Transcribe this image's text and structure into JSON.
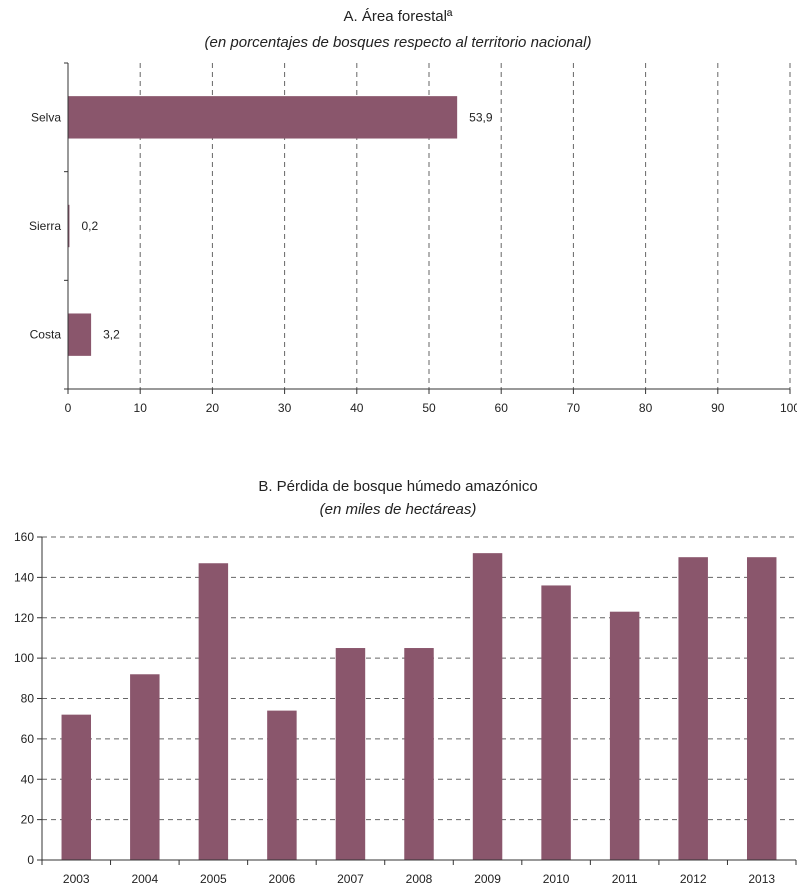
{
  "chart_data": [
    {
      "type": "bar",
      "orientation": "horizontal",
      "title": "A. Área forestalª",
      "subtitle": "(en porcentajes de bosques respecto al territorio nacional)",
      "categories": [
        "Selva",
        "Sierra",
        "Costa"
      ],
      "values": [
        53.9,
        0.2,
        3.2
      ],
      "value_labels": [
        "53,9",
        "0,2",
        "3,2"
      ],
      "xlim": [
        0,
        100
      ],
      "xticks": [
        0,
        10,
        20,
        30,
        40,
        50,
        60,
        70,
        80,
        90,
        100
      ],
      "grid": "vertical dashed",
      "color": "#8a566c"
    },
    {
      "type": "bar",
      "orientation": "vertical",
      "title": "B. Pérdida de bosque húmedo amazónico",
      "subtitle": "(en miles de hectáreas)",
      "categories": [
        "2003",
        "2004",
        "2005",
        "2006",
        "2007",
        "2008",
        "2009",
        "2010",
        "2011",
        "2012",
        "2013"
      ],
      "values": [
        72,
        92,
        147,
        74,
        105,
        105,
        152,
        136,
        123,
        150,
        150
      ],
      "ylim": [
        0,
        160
      ],
      "yticks": [
        0,
        20,
        40,
        60,
        80,
        100,
        120,
        140,
        160
      ],
      "grid": "horizontal dashed",
      "color": "#8a566c"
    }
  ]
}
